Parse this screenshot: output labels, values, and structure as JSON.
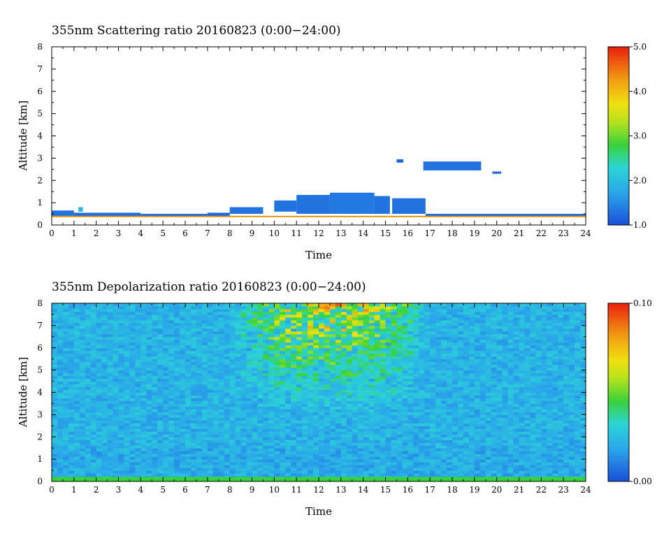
{
  "chart_data": [
    {
      "type": "heatmap",
      "title": "355nm Scattering ratio  20160823 (0:00−24:00)",
      "xlabel": "Time",
      "ylabel": "Altitude [km]",
      "xlim": [
        0,
        24
      ],
      "ylim": [
        0,
        8
      ],
      "x_ticks": [
        "0",
        "1",
        "2",
        "3",
        "4",
        "5",
        "6",
        "7",
        "8",
        "9",
        "10",
        "11",
        "12",
        "13",
        "14",
        "15",
        "16",
        "17",
        "18",
        "19",
        "20",
        "21",
        "22",
        "23",
        "24"
      ],
      "y_ticks": [
        "0",
        "1",
        "2",
        "3",
        "4",
        "5",
        "6",
        "7",
        "8"
      ],
      "colorbar": {
        "min": 1.0,
        "max": 5.0,
        "ticks": [
          "1.0",
          "2.0",
          "3.0",
          "4.0",
          "5.0"
        ]
      },
      "cloud_layers": [
        {
          "t_start": 0.0,
          "t_end": 1.0,
          "bottom_km": 0.4,
          "top_km": 0.65,
          "value": 1.3
        },
        {
          "t_start": 1.0,
          "t_end": 4.0,
          "bottom_km": 0.4,
          "top_km": 0.55,
          "value": 1.25
        },
        {
          "t_start": 1.2,
          "t_end": 1.4,
          "bottom_km": 0.6,
          "top_km": 0.8,
          "value": 1.9
        },
        {
          "t_start": 4.0,
          "t_end": 7.0,
          "bottom_km": 0.4,
          "top_km": 0.5,
          "value": 1.2
        },
        {
          "t_start": 7.0,
          "t_end": 8.0,
          "bottom_km": 0.4,
          "top_km": 0.55,
          "value": 1.2
        },
        {
          "t_start": 8.0,
          "t_end": 9.5,
          "bottom_km": 0.5,
          "top_km": 0.8,
          "value": 1.3
        },
        {
          "t_start": 10.0,
          "t_end": 11.0,
          "bottom_km": 0.6,
          "top_km": 1.1,
          "value": 1.3
        },
        {
          "t_start": 11.0,
          "t_end": 12.5,
          "bottom_km": 0.5,
          "top_km": 1.35,
          "value": 1.3
        },
        {
          "t_start": 12.5,
          "t_end": 14.5,
          "bottom_km": 0.5,
          "top_km": 1.45,
          "value": 1.35
        },
        {
          "t_start": 14.5,
          "t_end": 15.2,
          "bottom_km": 0.5,
          "top_km": 1.3,
          "value": 1.3
        },
        {
          "t_start": 15.3,
          "t_end": 16.8,
          "bottom_km": 0.5,
          "top_km": 1.2,
          "value": 1.3
        },
        {
          "t_start": 15.5,
          "t_end": 15.8,
          "bottom_km": 2.8,
          "top_km": 2.95,
          "value": 1.2
        },
        {
          "t_start": 16.7,
          "t_end": 19.3,
          "bottom_km": 2.45,
          "top_km": 2.85,
          "value": 1.3
        },
        {
          "t_start": 19.8,
          "t_end": 20.2,
          "bottom_km": 2.3,
          "top_km": 2.4,
          "value": 1.2
        },
        {
          "t_start": 16.8,
          "t_end": 24.0,
          "bottom_km": 0.4,
          "top_km": 0.5,
          "value": 1.2
        }
      ]
    },
    {
      "type": "heatmap",
      "title": "355nm Depolarization ratio  20160823 (0:00−24:00)",
      "xlabel": "Time",
      "ylabel": "Altitude [km]",
      "xlim": [
        0,
        24
      ],
      "ylim": [
        0,
        8
      ],
      "x_ticks": [
        "0",
        "1",
        "2",
        "3",
        "4",
        "5",
        "6",
        "7",
        "8",
        "9",
        "10",
        "11",
        "12",
        "13",
        "14",
        "15",
        "16",
        "17",
        "18",
        "19",
        "20",
        "21",
        "22",
        "23",
        "24"
      ],
      "y_ticks": [
        "0",
        "1",
        "2",
        "3",
        "4",
        "5",
        "6",
        "7",
        "8"
      ],
      "colorbar": {
        "min": 0.0,
        "max": 0.1,
        "ticks": [
          "0.00",
          "0.10"
        ]
      },
      "background_value": 0.022,
      "noisy_region": {
        "t_center": 12.5,
        "t_halfwidth": 4.5,
        "alt_from_km": 3.0,
        "peak_value": 0.09
      },
      "surface_layer": {
        "bottom_km": 0.0,
        "top_km": 0.2,
        "value": 0.045
      }
    }
  ]
}
